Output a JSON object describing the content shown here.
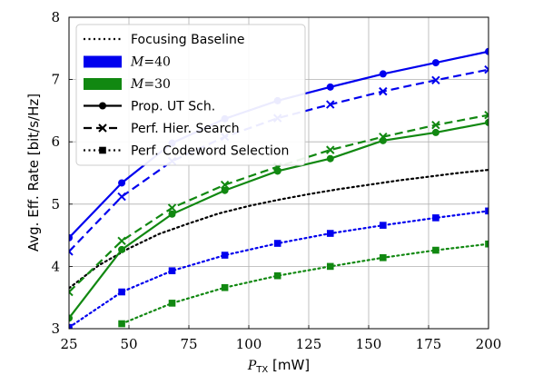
{
  "chart_data": {
    "type": "line",
    "xlabel_main": "P",
    "xlabel_sub": "TX",
    "xlabel_unit": " [mW]",
    "ylabel": "Avg. Eff. Rate [bit/s/Hz]",
    "xlim": [
      25,
      200
    ],
    "ylim": [
      3,
      8
    ],
    "xticks": [
      25,
      50,
      75,
      100,
      125,
      150,
      175,
      200
    ],
    "yticks": [
      3,
      4,
      5,
      6,
      7,
      8
    ],
    "grid": true,
    "legend_position": "top-left",
    "legend": [
      {
        "label": "Focusing Baseline",
        "kind": "line",
        "style": "dotted",
        "color": "#000000"
      },
      {
        "label": "M=40",
        "math": true,
        "kind": "patch",
        "color": "#0000ee"
      },
      {
        "label": "M=30",
        "math": true,
        "kind": "patch",
        "color": "#118811"
      },
      {
        "label": "Prop. UT Sch.",
        "kind": "line",
        "style": "solid",
        "marker": "circle",
        "color": "#000000"
      },
      {
        "label": "Perf. Hier. Search",
        "kind": "line",
        "style": "dashed",
        "marker": "x",
        "color": "#000000"
      },
      {
        "label": "Perf. Codeword Selection",
        "kind": "line",
        "style": "dotted",
        "marker": "square",
        "color": "#000000"
      }
    ],
    "series": [
      {
        "name": "Focusing Baseline",
        "color": "#000000",
        "style": "dotted",
        "marker": "none",
        "x": [
          25,
          37.5,
          50,
          62.5,
          75,
          87.5,
          100,
          112.5,
          125,
          137.5,
          150,
          162.5,
          175,
          187.5,
          200
        ],
        "values": [
          3.65,
          4.02,
          4.29,
          4.52,
          4.69,
          4.85,
          4.97,
          5.07,
          5.16,
          5.24,
          5.31,
          5.38,
          5.44,
          5.5,
          5.55
        ]
      },
      {
        "name": "M=40 Prop. UT Sch.",
        "color": "#0000ee",
        "style": "solid",
        "marker": "circle",
        "x": [
          25,
          47,
          68,
          90,
          112,
          134,
          156,
          178,
          200
        ],
        "values": [
          4.46,
          5.34,
          5.98,
          6.37,
          6.66,
          6.88,
          7.09,
          7.27,
          7.45
        ]
      },
      {
        "name": "M=40 Perf. Hier. Search",
        "color": "#0000ee",
        "style": "dashed",
        "marker": "x",
        "x": [
          25,
          47,
          68,
          90,
          112,
          134,
          156,
          178,
          200
        ],
        "values": [
          4.24,
          5.12,
          5.69,
          6.08,
          6.38,
          6.6,
          6.81,
          6.99,
          7.16
        ]
      },
      {
        "name": "M=40 Perf. Codeword Selection",
        "color": "#0000ee",
        "style": "dotted",
        "marker": "square",
        "x": [
          25,
          47,
          68,
          90,
          112,
          134,
          156,
          178,
          200
        ],
        "values": [
          3.02,
          3.59,
          3.93,
          4.18,
          4.37,
          4.53,
          4.66,
          4.78,
          4.89
        ]
      },
      {
        "name": "M=30 Prop. UT Sch.",
        "color": "#118811",
        "style": "solid",
        "marker": "circle",
        "x": [
          25,
          47,
          68,
          90,
          112,
          134,
          156,
          178,
          200
        ],
        "values": [
          3.17,
          4.27,
          4.84,
          5.22,
          5.53,
          5.73,
          6.02,
          6.15,
          6.31
        ]
      },
      {
        "name": "M=30 Perf. Hier. Search",
        "color": "#118811",
        "style": "dashed",
        "marker": "x",
        "x": [
          25,
          47,
          68,
          90,
          112,
          134,
          156,
          178,
          200
        ],
        "values": [
          3.59,
          4.41,
          4.94,
          5.31,
          5.6,
          5.87,
          6.08,
          6.27,
          6.43
        ]
      },
      {
        "name": "M=30 Perf. Codeword Selection",
        "color": "#118811",
        "style": "dotted",
        "marker": "square",
        "x": [
          47,
          68,
          90,
          112,
          134,
          156,
          178,
          200
        ],
        "values": [
          3.08,
          3.41,
          3.66,
          3.85,
          4.0,
          4.14,
          4.26,
          4.36
        ]
      }
    ]
  }
}
